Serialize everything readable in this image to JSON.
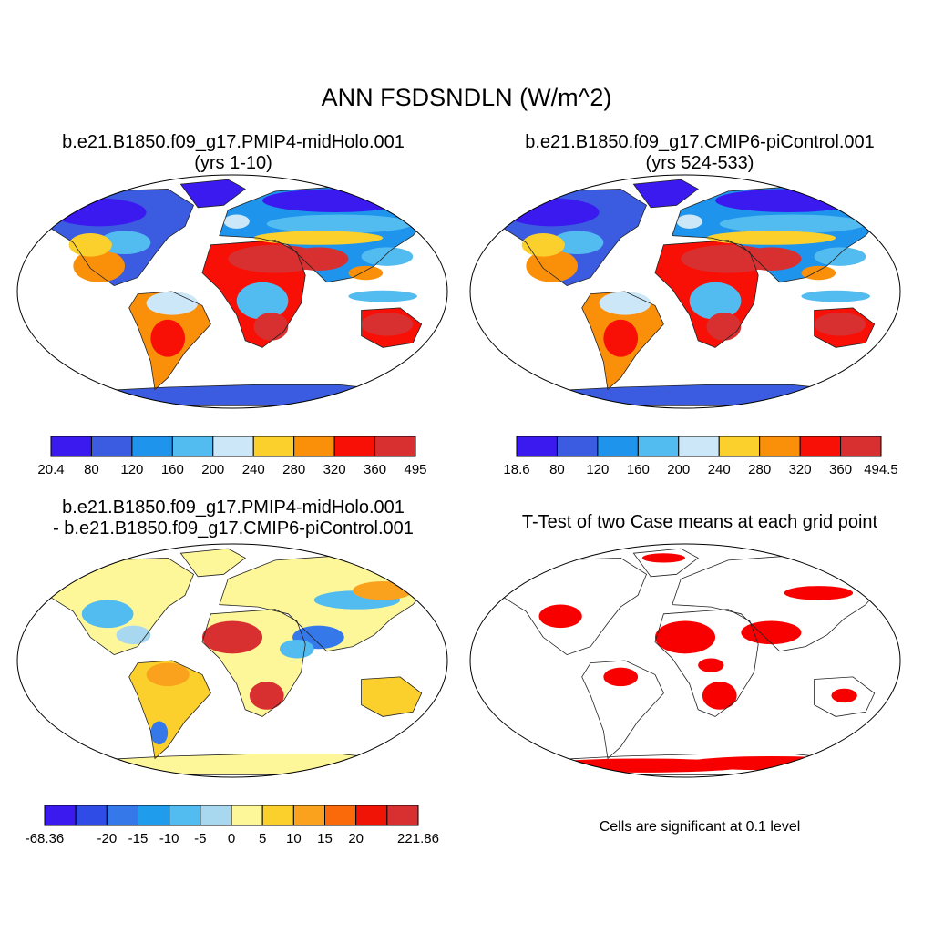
{
  "title": "ANN FSDSNDLN (W/m^2)",
  "panels": {
    "top_left": {
      "title_line1": "b.e21.B1850.f09_g17.PMIP4-midHolo.001",
      "title_line2": "(yrs 1-10)",
      "colorbar": {
        "colors": [
          "#3b1af0",
          "#3b5ce0",
          "#1f94ec",
          "#52bbf0",
          "#cce8f8",
          "#fcd02c",
          "#fa900a",
          "#f81006",
          "#d83030"
        ],
        "labels": [
          "20.4",
          "80",
          "120",
          "160",
          "200",
          "240",
          "280",
          "320",
          "360",
          "495"
        ]
      }
    },
    "top_right": {
      "title_line1": "b.e21.B1850.f09_g17.CMIP6-piControl.001",
      "title_line2": "(yrs 524-533)",
      "colorbar": {
        "colors": [
          "#3b1af0",
          "#3b5ce0",
          "#1f94ec",
          "#52bbf0",
          "#cce8f8",
          "#fcd02c",
          "#fa900a",
          "#f81006",
          "#d83030"
        ],
        "labels": [
          "18.6",
          "80",
          "120",
          "160",
          "200",
          "240",
          "280",
          "320",
          "360",
          "494.5"
        ]
      }
    },
    "bottom_left": {
      "title_line1": "b.e21.B1850.f09_g17.PMIP4-midHolo.001",
      "title_line2": "- b.e21.B1850.f09_g17.CMIP6-piControl.001",
      "colorbar": {
        "colors": [
          "#3b1af0",
          "#2f4ce6",
          "#3478ea",
          "#1f9cec",
          "#52bbf0",
          "#a8d8f0",
          "#fef79a",
          "#fcd02c",
          "#faa21e",
          "#fa6a0a",
          "#f01406",
          "#d83030"
        ],
        "labels": [
          "-68.36",
          "",
          "-20",
          "-15",
          "-10",
          "-5",
          "0",
          "5",
          "10",
          "15",
          "20",
          "",
          "221.86"
        ]
      }
    },
    "bottom_right": {
      "title": "T-Test of two Case means at each grid point",
      "note": "Cells are significant at 0.1 level",
      "significance_color": "#f80000"
    }
  }
}
